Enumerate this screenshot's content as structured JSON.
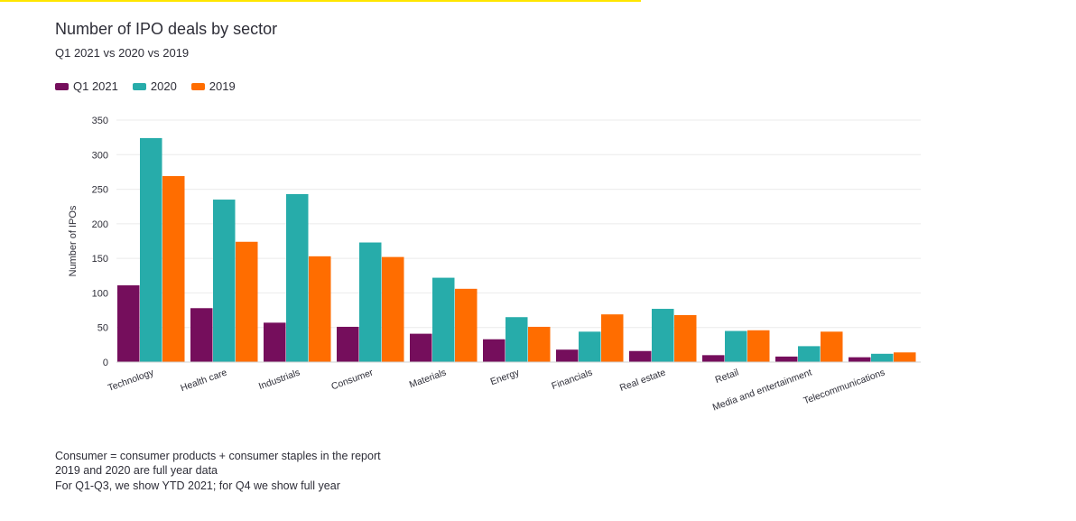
{
  "chart_data": {
    "type": "bar",
    "title": "Number of IPO deals by sector",
    "subtitle": "Q1 2021 vs 2020 vs 2019",
    "xlabel": "",
    "ylabel": "Number of IPOs",
    "ylim": [
      0,
      350
    ],
    "yticks": [
      "0",
      "50",
      "100",
      "150",
      "200",
      "250",
      "300",
      "350"
    ],
    "grid": true,
    "legend_position": "top-left",
    "categories": [
      "Technology",
      "Health care",
      "Industrials",
      "Consumer",
      "Materials",
      "Energy",
      "Financials",
      "Real estate",
      "Retail",
      "Media and entertainment",
      "Telecommunications"
    ],
    "series": [
      {
        "name": "Q1 2021",
        "color": "#750e5c",
        "values": [
          111,
          78,
          57,
          51,
          41,
          33,
          18,
          16,
          10,
          8,
          7
        ]
      },
      {
        "name": "2020",
        "color": "#27acaa",
        "values": [
          324,
          235,
          243,
          173,
          122,
          65,
          44,
          77,
          45,
          23,
          12
        ]
      },
      {
        "name": "2019",
        "color": "#ff6d00",
        "values": [
          269,
          174,
          153,
          152,
          106,
          51,
          69,
          68,
          46,
          44,
          14
        ]
      }
    ]
  },
  "footnotes": [
    "Consumer = consumer products + consumer staples in the report",
    "2019 and 2020 are full year data",
    "For Q1-Q3, we show YTD 2021; for Q4 we show full year"
  ],
  "colors": {
    "accent_bar": "#ffe600",
    "text": "#2e2e38",
    "grid": "#ebebeb"
  }
}
